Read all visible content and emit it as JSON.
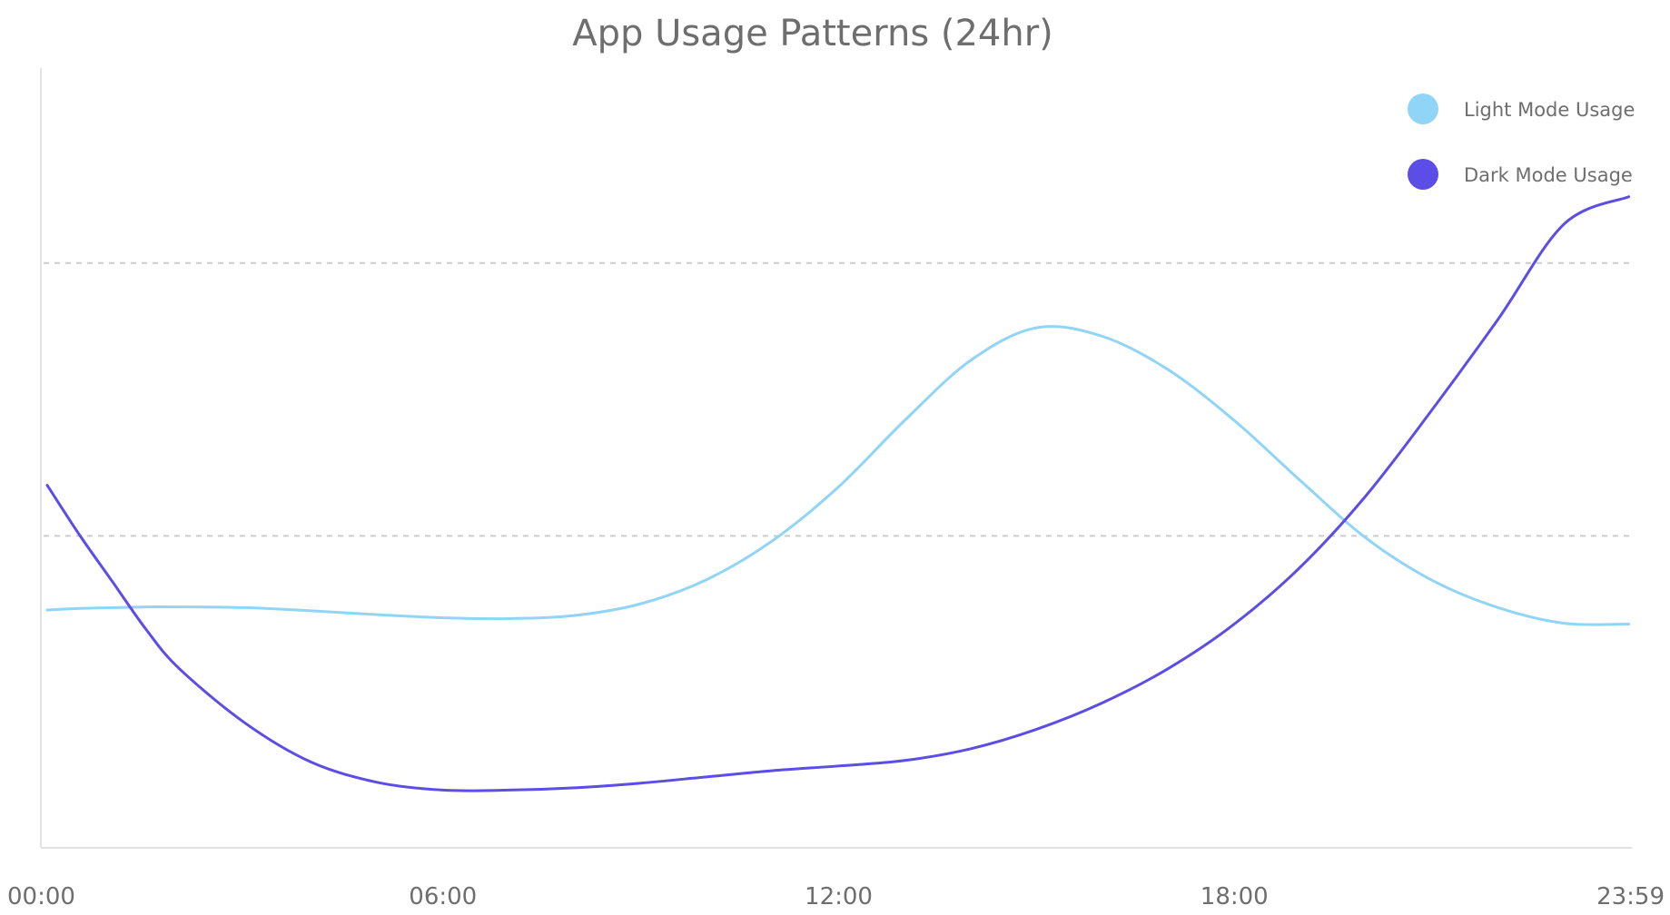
{
  "chart_data": {
    "type": "line",
    "title": "App Usage Patterns (24hr)",
    "xlabel": "",
    "ylabel": "",
    "x_tick_labels": [
      "00:00",
      "06:00",
      "12:00",
      "18:00",
      "23:59"
    ],
    "x": [
      0,
      0.5,
      1,
      1.5,
      2,
      3,
      4,
      5,
      6,
      7,
      8,
      9,
      10,
      11,
      12,
      13,
      14,
      15,
      16,
      17,
      18,
      19,
      20,
      21,
      22,
      23,
      23.98
    ],
    "ylim": [
      0,
      100
    ],
    "y_gridlines": [
      40,
      75
    ],
    "grid": true,
    "legend_position": "top-right",
    "series": [
      {
        "name": "Light Mode Usage",
        "color": "#90d4f7",
        "values": [
          30.5,
          30.7,
          30.8,
          30.9,
          30.9,
          30.8,
          30.4,
          29.9,
          29.5,
          29.4,
          29.8,
          31.3,
          34.4,
          39.4,
          46.3,
          54.8,
          62.5,
          66.7,
          65.6,
          61.3,
          54.8,
          47.1,
          39.7,
          34.3,
          30.8,
          28.8,
          28.7
        ]
      },
      {
        "name": "Dark Mode Usage",
        "color": "#5b4de6",
        "values": [
          46.5,
          40.0,
          34.0,
          28.0,
          23.0,
          16.0,
          11.0,
          8.4,
          7.4,
          7.4,
          7.7,
          8.3,
          9.1,
          9.9,
          10.5,
          11.2,
          12.7,
          15.2,
          18.6,
          23.0,
          28.7,
          36.0,
          45.2,
          56.2,
          67.8,
          80.0,
          83.5
        ]
      }
    ]
  }
}
